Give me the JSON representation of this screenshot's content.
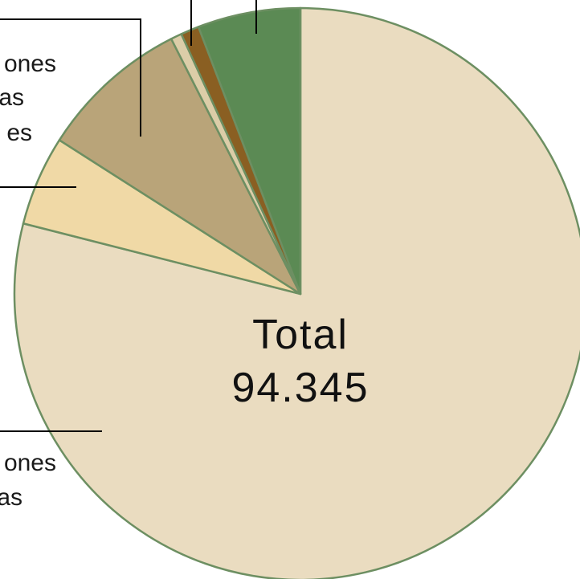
{
  "chart_data": {
    "type": "pie",
    "title": "",
    "center_label": {
      "line1": "Total",
      "line2": "94.345"
    },
    "slices": [
      {
        "label": "",
        "value": 76.2,
        "color": "#eadcc0"
      },
      {
        "label": "",
        "value": 4.9,
        "color": "#f0d9a6"
      },
      {
        "label": "",
        "value": 8.2,
        "color": "#b9a479"
      },
      {
        "label": "",
        "value": 0.6,
        "color": "#dccda8"
      },
      {
        "label": "",
        "value": 1.0,
        "color": "#8a5f22"
      },
      {
        "label": "",
        "value": 5.6,
        "color": "#5b8a54"
      }
    ],
    "outline_color": "#6d8f62",
    "leader_labels": {
      "upper_group": [
        "ones",
        "as",
        "es"
      ],
      "lower_group": [
        "ones",
        "as"
      ]
    }
  }
}
